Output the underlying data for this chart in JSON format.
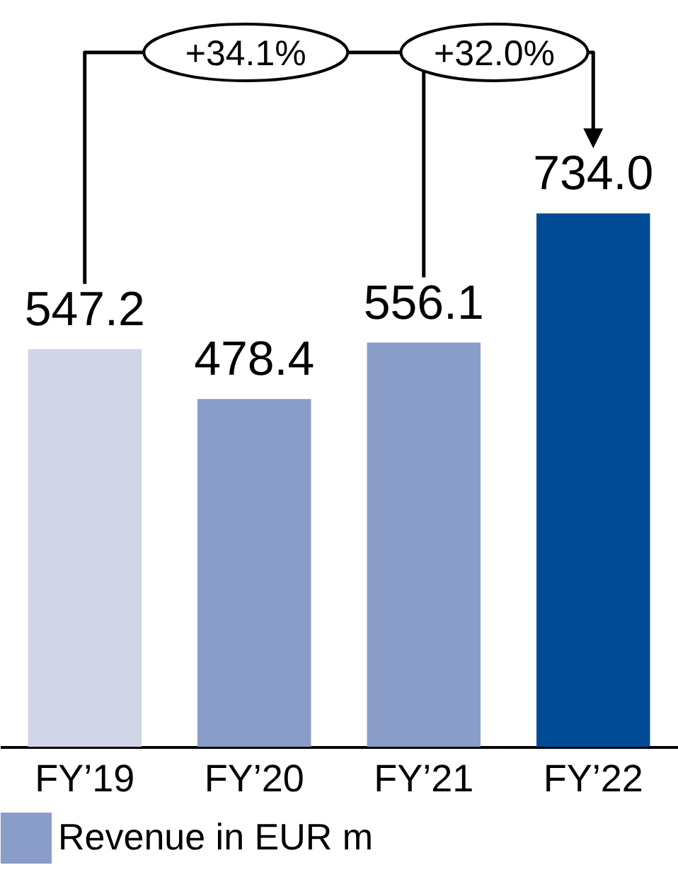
{
  "chart_data": {
    "type": "bar",
    "categories": [
      "FY’19",
      "FY’20",
      "FY’21",
      "FY’22"
    ],
    "series": [
      {
        "name": "Revenue in EUR m",
        "color": "#8a9cc8",
        "colors": [
          "#d0d5e8",
          "#8a9cc8",
          "#8a9cc8",
          "#004b93"
        ],
        "values": [
          547.2,
          478.4,
          556.1,
          734.0
        ],
        "value_labels": [
          "547.2",
          "478.4",
          "556.1",
          "734.0"
        ]
      }
    ],
    "annotations": [
      "+34.1%",
      "+32.0%"
    ],
    "legend": "bottom",
    "grid": false
  }
}
